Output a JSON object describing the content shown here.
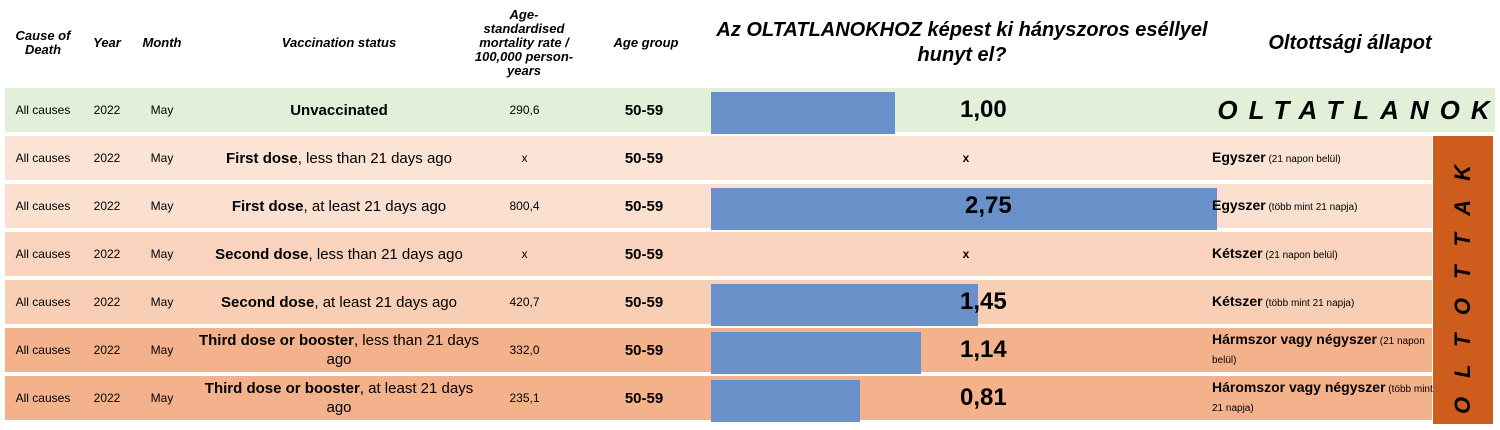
{
  "headers": {
    "cause": "Cause of Death",
    "year": "Year",
    "month": "Month",
    "vax": "Vaccination status",
    "rate": "Age-standardised mortality rate / 100,000 person-years",
    "age": "Age group",
    "ratio_title": "Az OLTATLANOKHOZ képest ki hányszoros eséllyel hunyt el?",
    "status_title": "Oltottsági állapot"
  },
  "labels": {
    "unvaccinated_group": "OLTATLANOK",
    "vaccinated_group": "OLTOTTAK"
  },
  "colors": {
    "bar": "#6990c8",
    "row0": "#e2efd9",
    "oltottak": "#cd5c1d"
  },
  "rows": [
    {
      "cause": "All causes",
      "year": "2022",
      "month": "May",
      "vax_bold": "Unvaccinated",
      "vax_rest": "",
      "rate": "290,6",
      "age": "50-59",
      "ratio": "1,00",
      "ratio_value": 1.0,
      "status_bold": "",
      "status_small": "",
      "bg": "#e2efd9"
    },
    {
      "cause": "All causes",
      "year": "2022",
      "month": "May",
      "vax_bold": "First dose",
      "vax_rest": ", less than 21 days ago",
      "rate": "x",
      "age": "50-59",
      "ratio": "x",
      "ratio_value": null,
      "status_bold": "Egyszer",
      "status_small": " (21 napon belül)",
      "bg": "#fbe3d6"
    },
    {
      "cause": "All causes",
      "year": "2022",
      "month": "May",
      "vax_bold": "First dose",
      "vax_rest": ", at least 21 days ago",
      "rate": "800,4",
      "age": "50-59",
      "ratio": "2,75",
      "ratio_value": 2.75,
      "status_bold": "Egyszer",
      "status_small": " (több mint 21 napja)",
      "bg": "#fbe0d0"
    },
    {
      "cause": "All causes",
      "year": "2022",
      "month": "May",
      "vax_bold": "Second dose",
      "vax_rest": ", less than 21 days ago",
      "rate": "x",
      "age": "50-59",
      "ratio": "x",
      "ratio_value": null,
      "status_bold": "Kétszer",
      "status_small": " (21 napon belül)",
      "bg": "#f9d3bd"
    },
    {
      "cause": "All causes",
      "year": "2022",
      "month": "May",
      "vax_bold": "Second dose",
      "vax_rest": ",  at least 21 days ago",
      "rate": "420,7",
      "age": "50-59",
      "ratio": "1,45",
      "ratio_value": 1.45,
      "status_bold": "Kétszer",
      "status_small": " (több mint 21 napja)",
      "bg": "#f8cfb5"
    },
    {
      "cause": "All causes",
      "year": "2022",
      "month": "May",
      "vax_bold": "Third dose or booster",
      "vax_rest": ", less than 21 days ago",
      "rate": "332,0",
      "age": "50-59",
      "ratio": "1,14",
      "ratio_value": 1.14,
      "status_bold": "Hármszor vagy négyszer",
      "status_small": " (21 napon belül)",
      "bg": "#f4b28c"
    },
    {
      "cause": "All causes",
      "year": "2022",
      "month": "May",
      "vax_bold": "Third dose or booster",
      "vax_rest": ", at least 21 days ago",
      "rate": "235,1",
      "age": "50-59",
      "ratio": "0,81",
      "ratio_value": 0.81,
      "status_bold": "Háromszor vagy négyszer",
      "status_small": " (több mint 21 napja)",
      "bg": "#f4b28c"
    }
  ]
}
